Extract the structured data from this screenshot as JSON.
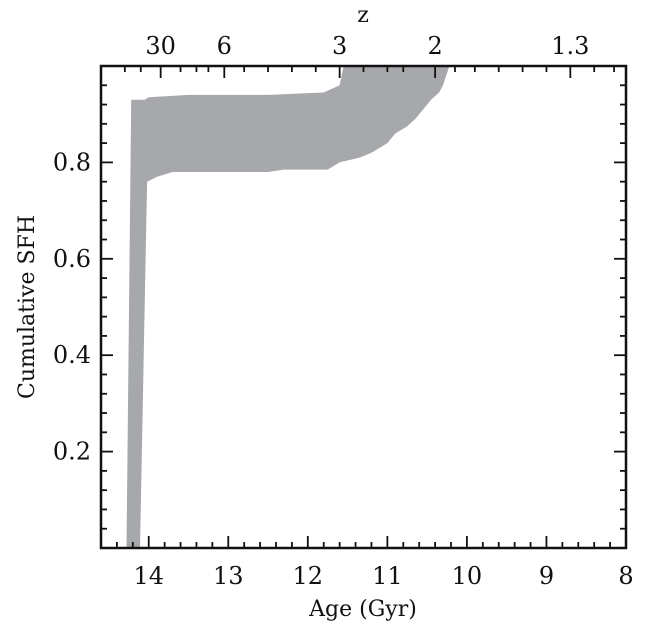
{
  "chart_data": {
    "type": "area",
    "title": "",
    "xlabel": "Age (Gyr)",
    "ylabel": "Cumulative SFH",
    "top_axis_label": "z",
    "xlim": [
      14.6,
      8.0
    ],
    "ylim": [
      0.0,
      1.0
    ],
    "x_ticks": [
      14,
      13,
      12,
      11,
      10,
      9,
      8
    ],
    "x_tick_labels": [
      "14",
      "13",
      "12",
      "11",
      "10",
      "9",
      "8"
    ],
    "y_ticks": [
      0.2,
      0.4,
      0.6,
      0.8
    ],
    "y_tick_labels": [
      "0.2",
      "0.4",
      "0.6",
      "0.8"
    ],
    "top_ticks": [
      {
        "label": "30",
        "age": 13.85
      },
      {
        "label": "6",
        "age": 13.05
      },
      {
        "label": "3",
        "age": 11.6
      },
      {
        "label": "2",
        "age": 10.4
      },
      {
        "label": "1.3",
        "age": 8.7
      }
    ],
    "fill_color": "#a7a8ab",
    "grid": false,
    "series": [
      {
        "kind": "band",
        "upper": [
          [
            14.28,
            0.0
          ],
          [
            14.22,
            0.93
          ],
          [
            14.05,
            0.93
          ],
          [
            14.0,
            0.935
          ],
          [
            13.5,
            0.94
          ],
          [
            12.5,
            0.94
          ],
          [
            11.8,
            0.945
          ],
          [
            11.6,
            0.96
          ],
          [
            11.55,
            1.0
          ]
        ],
        "lower": [
          [
            14.11,
            0.0
          ],
          [
            14.02,
            0.76
          ],
          [
            13.9,
            0.77
          ],
          [
            13.7,
            0.78
          ],
          [
            12.5,
            0.78
          ],
          [
            12.3,
            0.785
          ],
          [
            11.75,
            0.785
          ],
          [
            11.6,
            0.8
          ],
          [
            11.35,
            0.81
          ],
          [
            11.2,
            0.82
          ],
          [
            11.0,
            0.84
          ],
          [
            10.9,
            0.86
          ],
          [
            10.75,
            0.875
          ],
          [
            10.65,
            0.89
          ],
          [
            10.55,
            0.91
          ],
          [
            10.45,
            0.93
          ],
          [
            10.35,
            0.945
          ],
          [
            10.3,
            0.96
          ],
          [
            10.22,
            1.0
          ]
        ]
      }
    ]
  }
}
